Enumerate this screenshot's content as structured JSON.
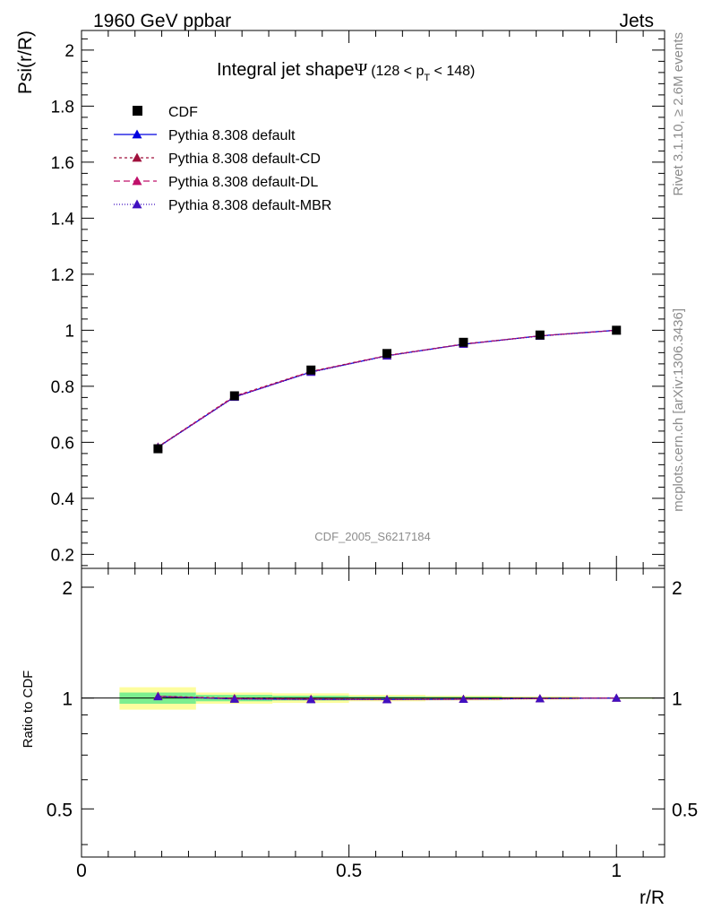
{
  "header": {
    "left": "1960 GeV ppbar",
    "right": "Jets"
  },
  "side_text": {
    "top": "Rivet 3.1.10, ≥ 2.6M events",
    "bottom": "mcplots.cern.ch [arXiv:1306.3436]"
  },
  "chart_data": {
    "type": "line",
    "title": "Integral jet shape",
    "title_symbol": "Ψ",
    "title_range_pre": "(128 < p",
    "title_range_sub": "T",
    "title_range_post": " < 148)",
    "watermark": "CDF_2005_S6217184",
    "xlabel": "r/R",
    "ylabel": "Psi(r/R)",
    "ratio_ylabel": "Ratio to CDF",
    "xlim": [
      0,
      1.09
    ],
    "ylim": [
      0.15,
      2.07
    ],
    "ratio_ylim": [
      0.37,
      2.25
    ],
    "x_ticks": [
      0,
      0.5,
      1
    ],
    "x_tick_labels": [
      "0",
      "0.5",
      "1"
    ],
    "y_ticks": [
      0.2,
      0.4,
      0.6,
      0.8,
      1,
      1.2,
      1.4,
      1.6,
      1.8,
      2
    ],
    "y_tick_labels": [
      "0.2",
      "0.4",
      "0.6",
      "0.8",
      "1",
      "1.2",
      "1.4",
      "1.6",
      "1.8",
      "2"
    ],
    "ratio_ticks": [
      0.5,
      1,
      2
    ],
    "ratio_tick_labels": [
      "0.5",
      "1",
      "2"
    ],
    "legend_position": "top-left",
    "x": [
      0.143,
      0.286,
      0.429,
      0.571,
      0.714,
      0.857,
      1.0
    ],
    "bin_edges": [
      0.071,
      0.214,
      0.357,
      0.5,
      0.643,
      0.786,
      0.929,
      1.071
    ],
    "data": {
      "name": "CDF",
      "values": [
        0.577,
        0.766,
        0.858,
        0.917,
        0.957,
        0.983,
        1.0
      ]
    },
    "series": [
      {
        "name": "Pythia 8.308 default",
        "color": "#0000e0",
        "dash": "",
        "values": [
          0.583,
          0.762,
          0.851,
          0.909,
          0.95,
          0.98,
          1.0
        ]
      },
      {
        "name": "Pythia 8.308 default-CD",
        "color": "#a0103c",
        "dash": "3,3",
        "values": [
          0.584,
          0.765,
          0.853,
          0.91,
          0.951,
          0.98,
          1.0
        ]
      },
      {
        "name": "Pythia 8.308 default-DL",
        "color": "#c0106a",
        "dash": "7,4",
        "values": [
          0.583,
          0.763,
          0.852,
          0.909,
          0.95,
          0.98,
          1.0
        ]
      },
      {
        "name": "Pythia 8.308 default-MBR",
        "color": "#4010c0",
        "dash": "1,2",
        "values": [
          0.582,
          0.761,
          0.85,
          0.908,
          0.95,
          0.979,
          1.0
        ]
      }
    ],
    "ratio_band_inner": [
      0.035,
      0.02,
      0.015,
      0.01,
      0.008,
      0.005,
      0.003
    ],
    "ratio_band_outer": [
      0.07,
      0.035,
      0.03,
      0.02,
      0.015,
      0.01,
      0.005
    ],
    "colors": {
      "band_inner": "#7cee8f",
      "band_outer": "#fdfd9e",
      "data_marker": "#000000"
    }
  }
}
